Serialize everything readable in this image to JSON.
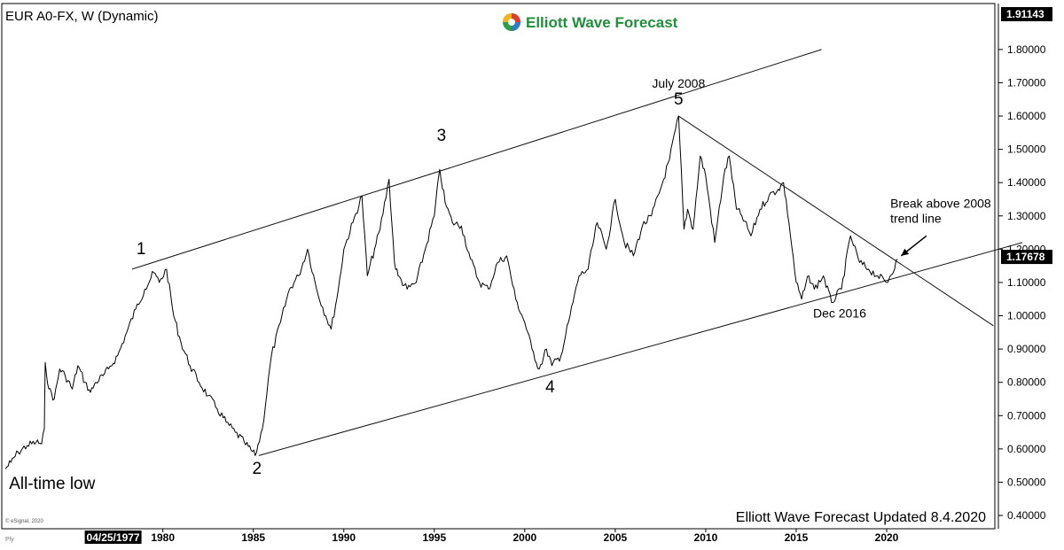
{
  "chart_data": {
    "type": "line",
    "title": "EUR A0-FX, W (Dynamic)",
    "watermark": "Elliott Wave Forecast Updated 8.4.2020",
    "brand": {
      "name": "Elliott Wave Forecast",
      "color": "#1f8f3a",
      "logo_colors": [
        "#e8382c",
        "#2e9e47",
        "#2a7fc1",
        "#f4b41a"
      ]
    },
    "source_note": "© eSignal, 2020",
    "corner_label": "Ply",
    "y_axis": {
      "side": "right",
      "range": [
        0.4,
        1.91143
      ],
      "ticks": [
        "1.80000",
        "1.70000",
        "1.60000",
        "1.50000",
        "1.40000",
        "1.30000",
        "1.20000",
        "1.10000",
        "1.00000",
        "0.90000",
        "0.80000",
        "0.70000",
        "0.60000",
        "0.50000",
        "0.40000"
      ],
      "tick_values": [
        1.8,
        1.7,
        1.6,
        1.5,
        1.4,
        1.3,
        1.2,
        1.1,
        1.0,
        0.9,
        0.8,
        0.7,
        0.6,
        0.5,
        0.4
      ],
      "top_label": "1.91143",
      "last_price_label": "1.17678",
      "last_price": 1.17678
    },
    "x_axis": {
      "start_label": "04/25/1977",
      "start_value": 1977.3,
      "ticks": [
        "1980",
        "1985",
        "1990",
        "1995",
        "2000",
        "2005",
        "2010",
        "2015",
        "2020"
      ],
      "tick_values": [
        1980,
        1985,
        1990,
        1995,
        2000,
        2005,
        2010,
        2015,
        2020
      ],
      "range": [
        1971.0,
        2029.8
      ]
    },
    "series": [
      {
        "color": "#000000",
        "x": [
          1971.3,
          1971.6,
          1972.0,
          1972.5,
          1973.0,
          1973.3,
          1973.45,
          1973.5,
          1973.7,
          1974.0,
          1974.3,
          1974.6,
          1975.0,
          1975.3,
          1975.7,
          1976.0,
          1976.3,
          1976.7,
          1977.0,
          1977.5,
          1978.0,
          1978.5,
          1979.0,
          1979.5,
          1979.8,
          1980.2,
          1980.6,
          1981.0,
          1981.5,
          1982.0,
          1982.5,
          1983.0,
          1983.5,
          1984.0,
          1984.5,
          1985.1,
          1985.5,
          1986.0,
          1986.5,
          1987.0,
          1987.5,
          1988.0,
          1988.5,
          1989.0,
          1989.3,
          1989.7,
          1990.0,
          1990.5,
          1991.0,
          1991.3,
          1991.7,
          1992.0,
          1992.5,
          1992.8,
          1993.0,
          1993.5,
          1994.0,
          1994.5,
          1995.0,
          1995.3,
          1995.6,
          1996.0,
          1996.5,
          1997.0,
          1997.5,
          1998.0,
          1998.5,
          1999.0,
          1999.5,
          2000.0,
          2000.4,
          2000.8,
          2001.2,
          2001.5,
          2002.0,
          2002.5,
          2003.0,
          2003.5,
          2004.0,
          2004.5,
          2005.0,
          2005.5,
          2006.0,
          2006.5,
          2007.0,
          2007.5,
          2008.0,
          2008.5,
          2008.8,
          2009.0,
          2009.3,
          2009.7,
          2010.0,
          2010.5,
          2011.0,
          2011.3,
          2011.7,
          2012.0,
          2012.5,
          2013.0,
          2013.5,
          2014.0,
          2014.3,
          2014.6,
          2015.0,
          2015.3,
          2015.7,
          2016.0,
          2016.5,
          2016.95,
          2017.5,
          2018.0,
          2018.5,
          2019.0,
          2019.5,
          2020.0,
          2020.2,
          2020.6
        ],
        "y": [
          0.54,
          0.56,
          0.59,
          0.61,
          0.62,
          0.615,
          0.66,
          0.86,
          0.78,
          0.75,
          0.84,
          0.82,
          0.78,
          0.85,
          0.8,
          0.77,
          0.8,
          0.82,
          0.84,
          0.88,
          0.95,
          1.02,
          1.08,
          1.13,
          1.1,
          1.14,
          1.0,
          0.92,
          0.85,
          0.8,
          0.76,
          0.72,
          0.68,
          0.65,
          0.62,
          0.58,
          0.66,
          0.88,
          0.98,
          1.08,
          1.12,
          1.2,
          1.08,
          1.0,
          0.96,
          1.08,
          1.2,
          1.28,
          1.36,
          1.12,
          1.2,
          1.26,
          1.41,
          1.16,
          1.12,
          1.08,
          1.1,
          1.2,
          1.3,
          1.44,
          1.34,
          1.28,
          1.27,
          1.17,
          1.1,
          1.08,
          1.16,
          1.18,
          1.05,
          0.98,
          0.9,
          0.84,
          0.9,
          0.85,
          0.88,
          1.0,
          1.12,
          1.14,
          1.28,
          1.2,
          1.35,
          1.22,
          1.18,
          1.27,
          1.3,
          1.38,
          1.47,
          1.6,
          1.26,
          1.32,
          1.26,
          1.48,
          1.42,
          1.22,
          1.42,
          1.48,
          1.32,
          1.3,
          1.24,
          1.32,
          1.36,
          1.38,
          1.4,
          1.28,
          1.1,
          1.05,
          1.12,
          1.08,
          1.12,
          1.04,
          1.08,
          1.24,
          1.16,
          1.14,
          1.12,
          1.1,
          1.12,
          1.17
        ]
      }
    ],
    "trendlines": [
      {
        "name": "upper channel",
        "x": [
          1978.3,
          2016.4
        ],
        "y": [
          1.14,
          1.8
        ]
      },
      {
        "name": "lower channel",
        "x": [
          1985.3,
          2027.5
        ],
        "y": [
          0.58,
          1.22
        ]
      },
      {
        "name": "2008 trend line",
        "x": [
          2008.5,
          2025.9
        ],
        "y": [
          1.6,
          0.97
        ]
      }
    ],
    "wave_labels": [
      {
        "text": "1",
        "x": 1978.8,
        "y": 1.185,
        "anchor": "middle"
      },
      {
        "text": "2",
        "x": 1985.2,
        "y": 0.525,
        "anchor": "middle"
      },
      {
        "text": "3",
        "x": 1995.4,
        "y": 1.525,
        "anchor": "middle"
      },
      {
        "text": "4",
        "x": 2001.4,
        "y": 0.77,
        "anchor": "middle"
      },
      {
        "text": "5",
        "x": 2008.5,
        "y": 1.635,
        "anchor": "middle"
      }
    ],
    "annotations": [
      {
        "lines": [
          "July 2008"
        ],
        "x": 2008.5,
        "y": 1.685,
        "anchor": "middle"
      },
      {
        "lines": [
          "Dec 2016"
        ],
        "x": 2017.4,
        "y": 0.995,
        "anchor": "middle"
      },
      {
        "lines": [
          "All-time low"
        ],
        "x": 1971.5,
        "y": 0.48,
        "anchor": "start"
      },
      {
        "lines": [
          "Break above 2008",
          "trend line"
        ],
        "x": 2020.2,
        "y": 1.325,
        "anchor": "start"
      }
    ],
    "arrow": {
      "from": [
        2022.2,
        1.24
      ],
      "to": [
        2020.8,
        1.18
      ]
    },
    "grid": false,
    "legend": "none"
  }
}
